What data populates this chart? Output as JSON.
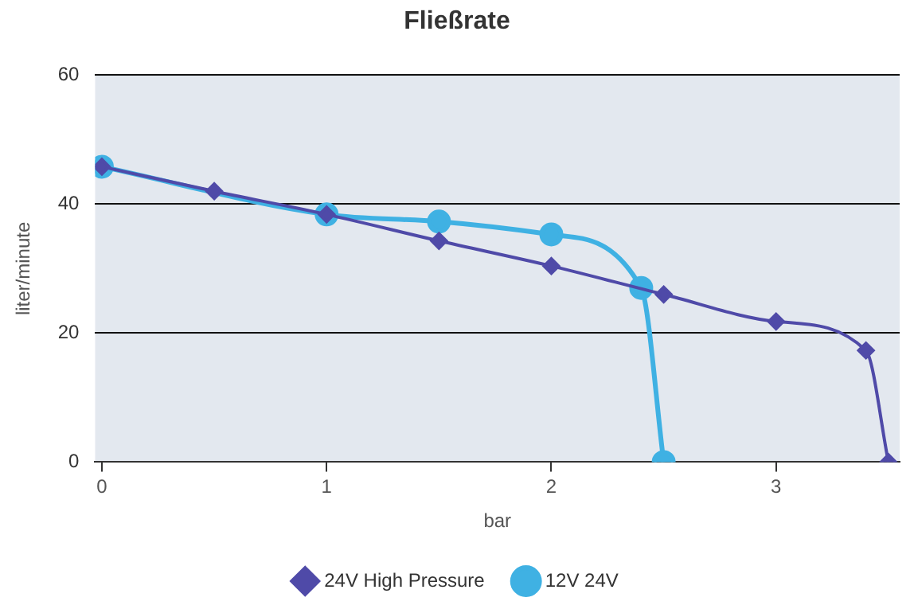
{
  "chart_data": {
    "type": "line",
    "title": "Fließrate",
    "xlabel": "bar",
    "ylabel": "liter/minute",
    "xlim": [
      -0.03,
      3.55
    ],
    "xticks": [
      0,
      1,
      2,
      3
    ],
    "ylim": [
      0,
      60
    ],
    "yticks": [
      0,
      20,
      40,
      60
    ],
    "grid": "y",
    "legend": "bottom",
    "series": [
      {
        "name": "12V 24V",
        "color": "#3fb1e3",
        "marker": "circle",
        "x": [
          0,
          1,
          1.5,
          2,
          2.4,
          2.5
        ],
        "values": [
          45.8,
          38.4,
          37.3,
          35.3,
          27,
          0
        ]
      },
      {
        "name": "24V High Pressure",
        "color": "#4f4aa8",
        "marker": "diamond",
        "x": [
          0,
          0.5,
          1,
          1.5,
          2,
          2.5,
          3,
          3.4,
          3.5
        ],
        "values": [
          45.8,
          42,
          38.4,
          34.3,
          30.4,
          26,
          21.8,
          17.3,
          0
        ]
      }
    ]
  }
}
